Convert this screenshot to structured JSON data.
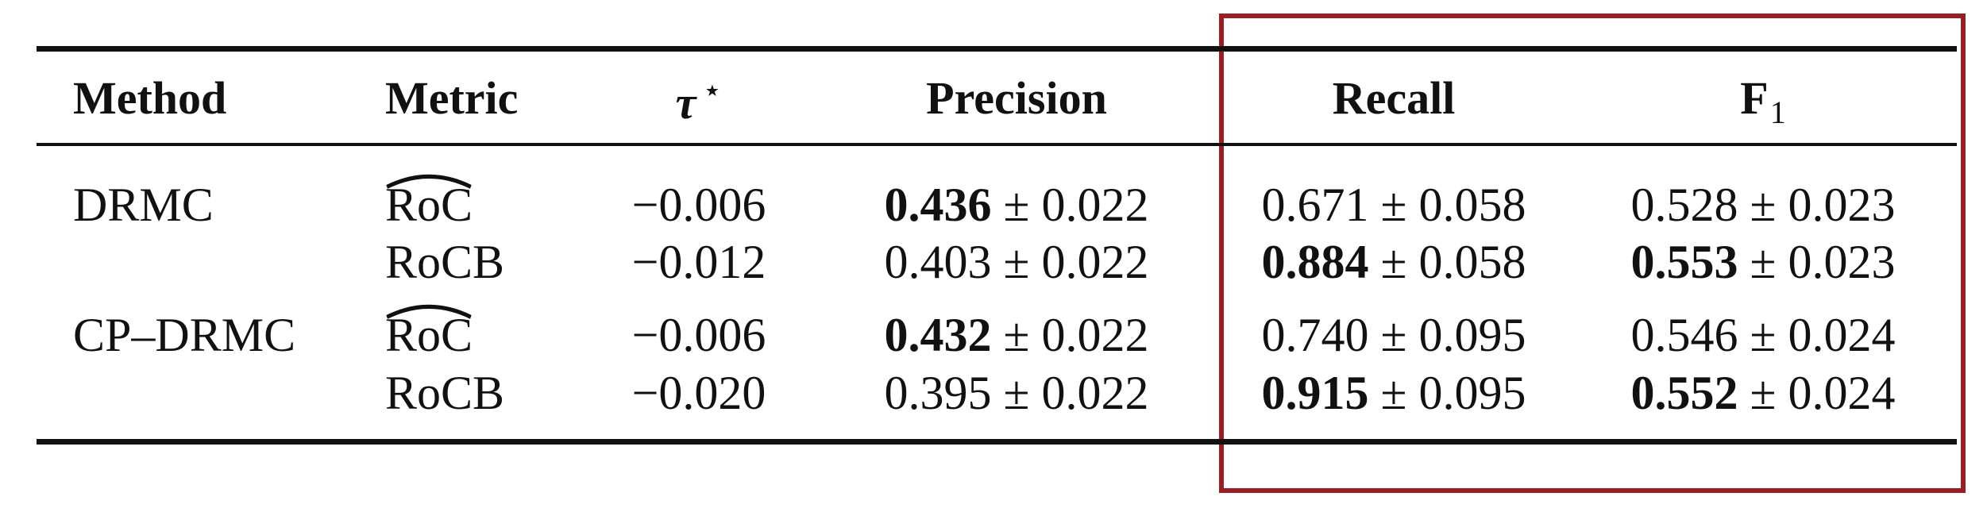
{
  "table": {
    "headers": {
      "method": "Method",
      "metric": "Metric",
      "tau_symbol": "τ",
      "tau_star": "⋆",
      "precision": "Precision",
      "recall": "Recall",
      "f1_base": "F",
      "f1_sub": "1"
    },
    "rows": [
      {
        "method": "DRMC",
        "metric": "RoC",
        "tau": "−0.006",
        "precision_mean": "0.436",
        "precision_pm": " ± 0.022",
        "recall_mean": "0.671",
        "recall_pm": " ± 0.058",
        "f1_mean": "0.528",
        "f1_pm": " ± 0.023"
      },
      {
        "method": "",
        "metric": "RoCB",
        "tau": "−0.012",
        "precision_mean": "0.403",
        "precision_pm": " ± 0.022",
        "recall_mean": "0.884",
        "recall_pm": " ± 0.058",
        "f1_mean": "0.553",
        "f1_pm": " ± 0.023"
      },
      {
        "method": "CP–DRMC",
        "metric": "RoC",
        "tau": "−0.006",
        "precision_mean": "0.432",
        "precision_pm": " ± 0.022",
        "recall_mean": "0.740",
        "recall_pm": " ± 0.095",
        "f1_mean": "0.546",
        "f1_pm": " ± 0.024"
      },
      {
        "method": "",
        "metric": "RoCB",
        "tau": "−0.020",
        "precision_mean": "0.395",
        "precision_pm": " ± 0.022",
        "recall_mean": "0.915",
        "recall_pm": " ± 0.095",
        "f1_mean": "0.552",
        "f1_pm": " ± 0.024"
      }
    ]
  },
  "colors": {
    "rule": "#111111",
    "highlight": "#9a1f24"
  }
}
